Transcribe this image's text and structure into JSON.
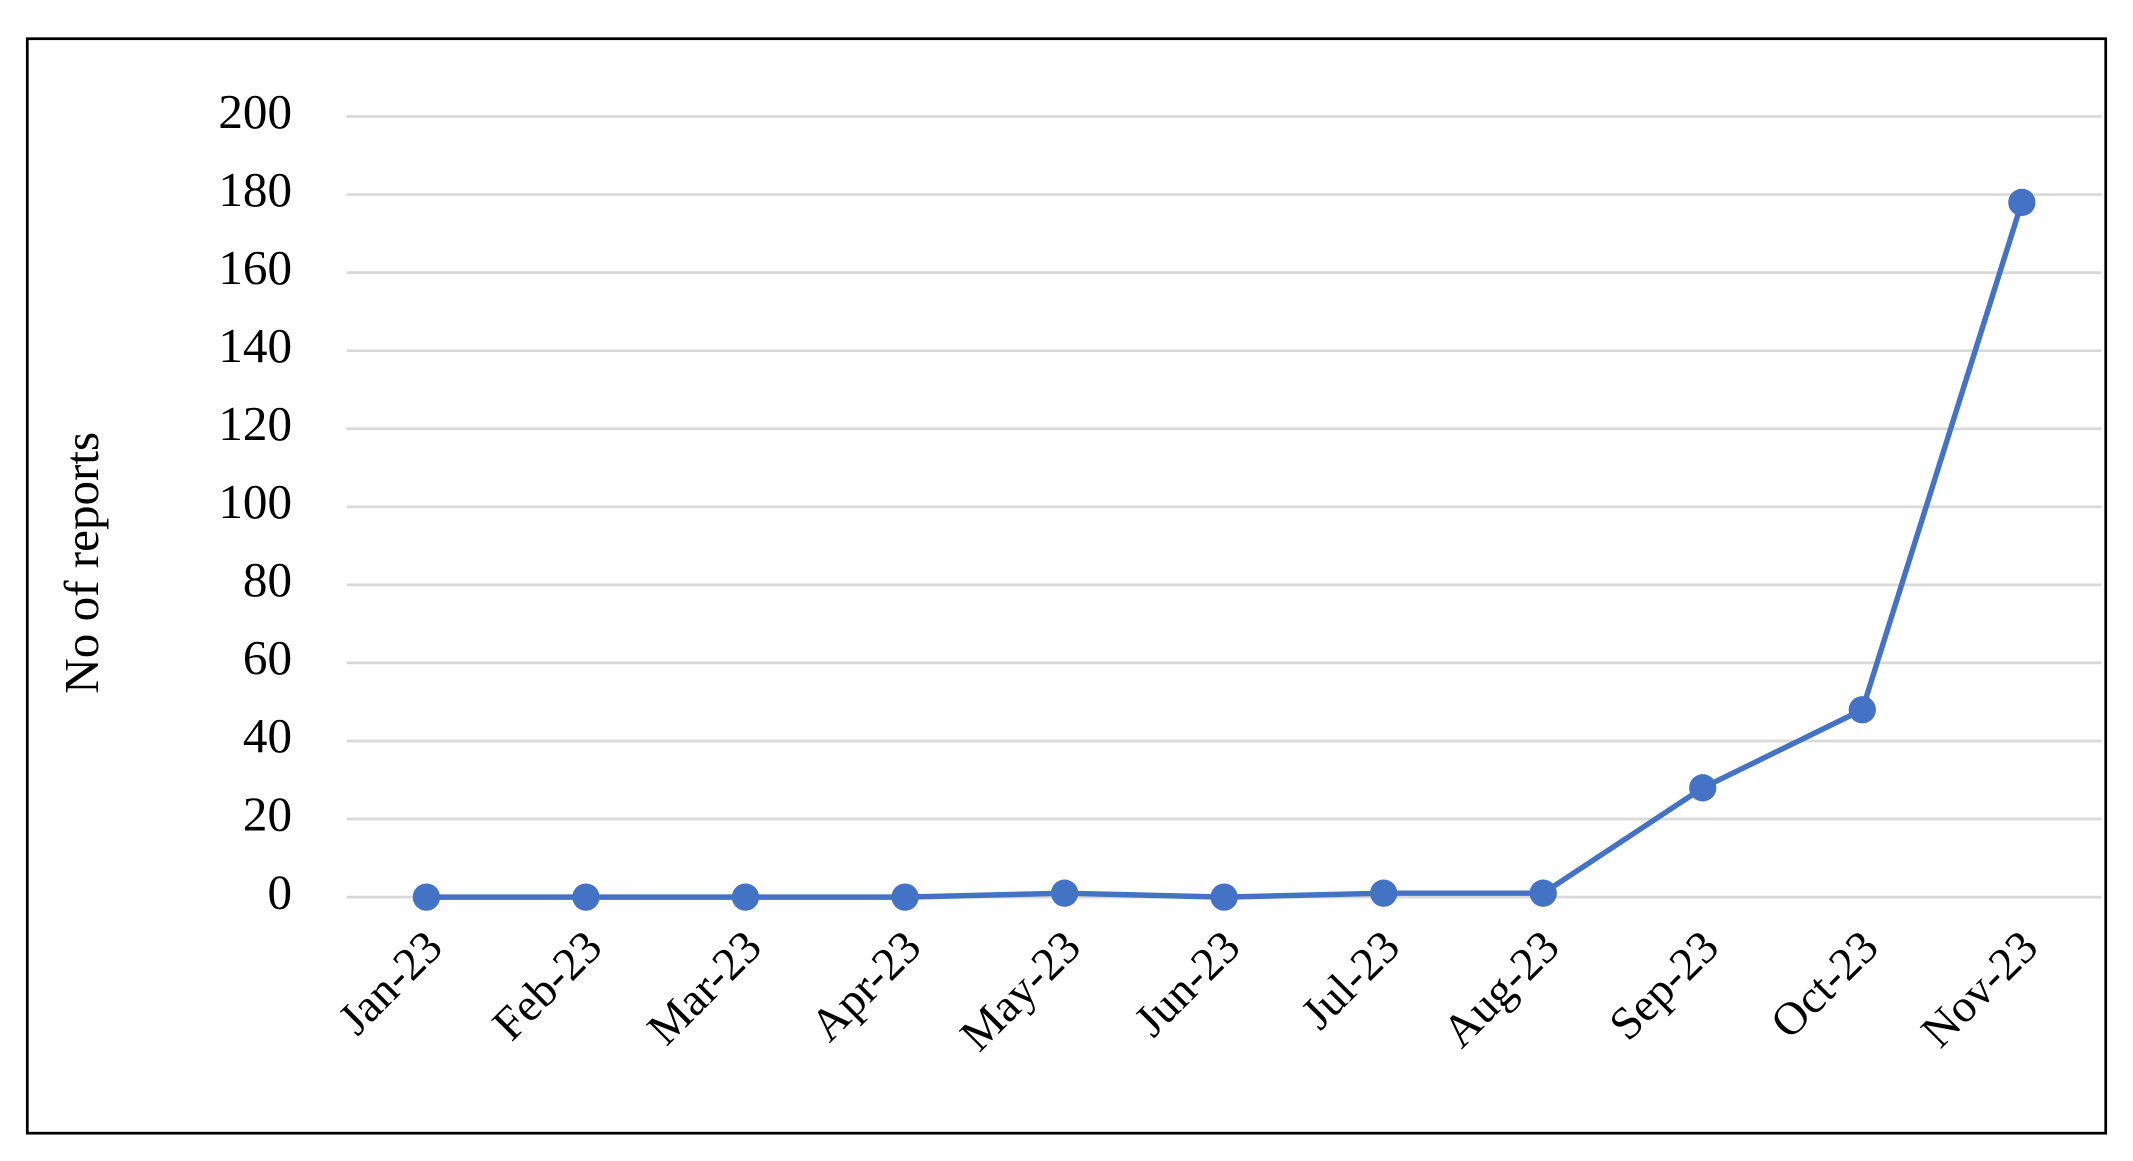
{
  "chart_data": {
    "type": "line",
    "y_label": "No of reports",
    "categories": [
      "Jan-23",
      "Feb-23",
      "Mar-23",
      "Apr-23",
      "May-23",
      "Jun-23",
      "Jul-23",
      "Aug-23",
      "Sep-23",
      "Oct-23",
      "Nov-23"
    ],
    "values": [
      0,
      0,
      0,
      0,
      1,
      0,
      1,
      1,
      28,
      48,
      178
    ],
    "color": "#4472c4",
    "ylim": [
      0,
      200
    ],
    "yticks": [
      0,
      20,
      40,
      60,
      80,
      100,
      120,
      140,
      160,
      180,
      200
    ],
    "grid": true
  }
}
